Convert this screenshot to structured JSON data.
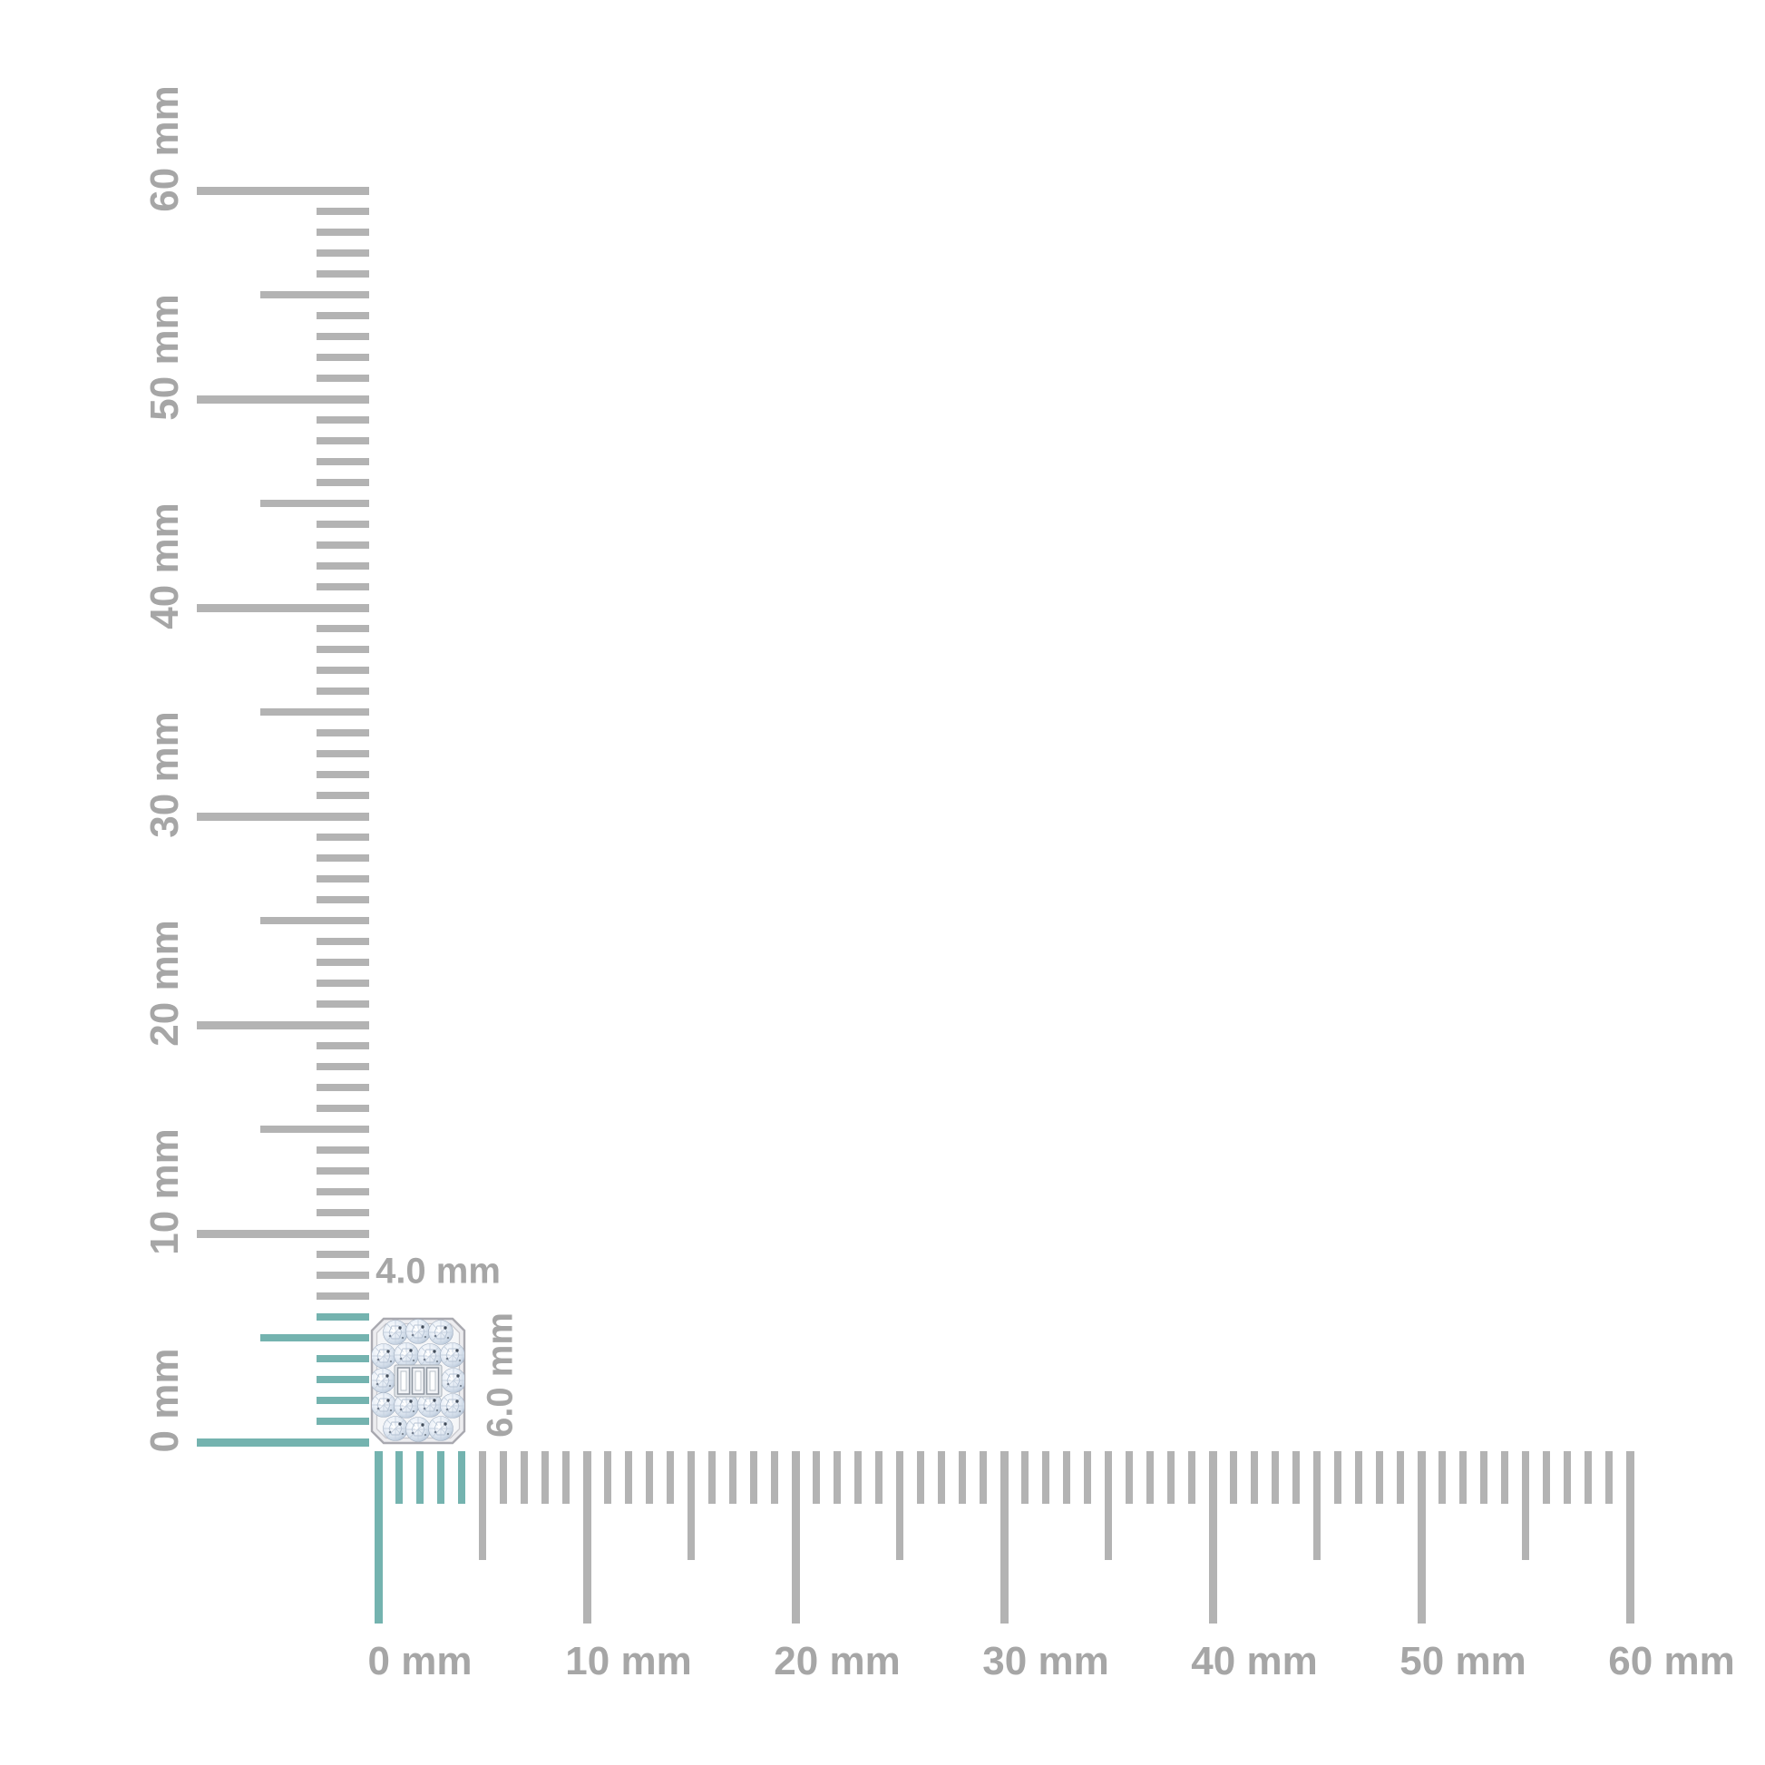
{
  "measurement": {
    "unit": "mm",
    "item": {
      "type": "diamond-cluster-pendant",
      "description": "rectangular emerald-shape cluster of round pave diamonds with three center baguette diamonds in a white metal frame",
      "width_mm": 4.0,
      "height_mm": 6.0,
      "width_label": "4.0 mm",
      "height_label": "6.0 mm"
    },
    "rulers": {
      "vertical": {
        "min_mm": 0,
        "max_mm": 60,
        "minor_step_mm": 1,
        "medium_step_mm": 5,
        "major_step_mm": 10,
        "labels": [
          "0 mm",
          "10 mm",
          "20 mm",
          "30 mm",
          "40 mm",
          "50 mm",
          "60 mm"
        ],
        "highlight_from_mm": 0,
        "highlight_to_mm": 6
      },
      "horizontal": {
        "min_mm": 0,
        "max_mm": 60,
        "minor_step_mm": 1,
        "medium_step_mm": 5,
        "major_step_mm": 10,
        "labels": [
          "0 mm",
          "10 mm",
          "20 mm",
          "30 mm",
          "40 mm",
          "50 mm",
          "60 mm"
        ],
        "highlight_from_mm": 0,
        "highlight_to_mm": 4
      }
    },
    "colors": {
      "tick_gray": "#b3b3b3",
      "label_gray": "#a6a6a6",
      "highlight_teal": "#74b3af",
      "metal_light": "#ededf0",
      "metal_edge": "#a9a9b0",
      "diamond_light": "#e9eff7",
      "diamond_mid": "#ccd8e6",
      "diamond_deep": "#aebdd0",
      "facet_dark": "#222c3a"
    }
  }
}
